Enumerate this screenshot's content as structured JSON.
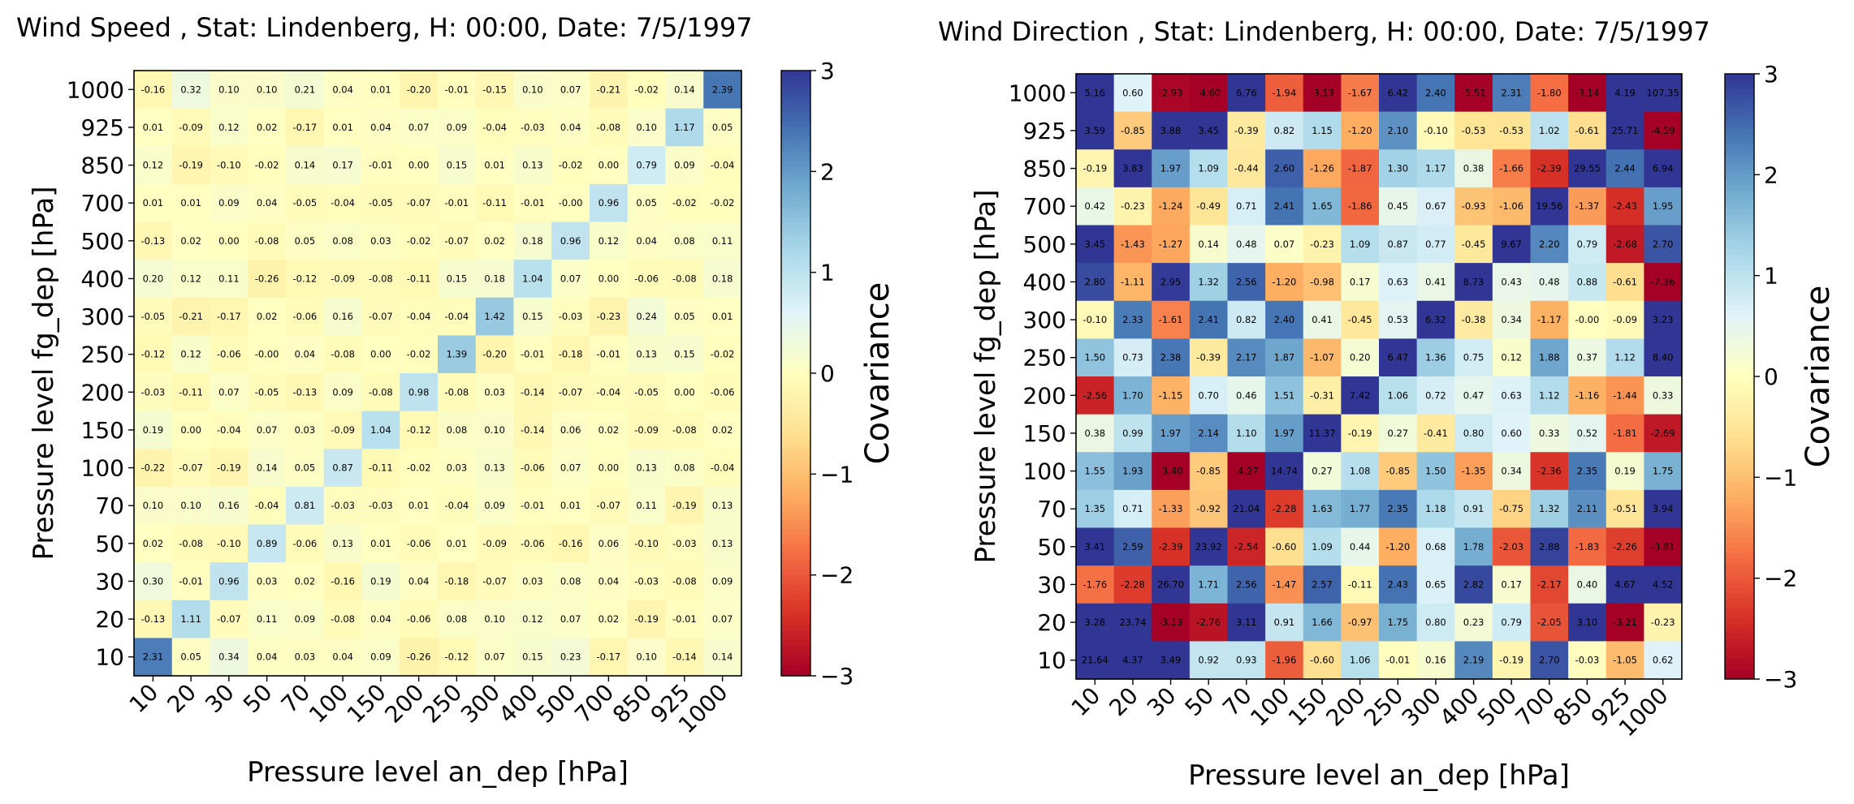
{
  "figure": {
    "charts": [
      {
        "id": "wind-speed",
        "title": "Wind Speed , Stat: Lindenberg, H: 00:00, Date: 7/5/1997",
        "xlabel": "Pressure level an_dep [hPa]",
        "ylabel": "Pressure level fg_dep [hPa]",
        "cbar_label": "Covariance"
      },
      {
        "id": "wind-direction",
        "title": "Wind Direction , Stat: Lindenberg, H: 00:00, Date: 7/5/1997",
        "xlabel": "Pressure level an_dep [hPa]",
        "ylabel": "Pressure level fg_dep [hPa]",
        "cbar_label": "Covariance"
      }
    ]
  },
  "chart_data": [
    {
      "type": "heatmap",
      "title": "Wind Speed , Stat: Lindenberg, H: 00:00, Date: 7/5/1997",
      "xlabel": "Pressure level an_dep [hPa]",
      "ylabel": "Pressure level fg_dep [hPa]",
      "x_categories": [
        "10",
        "20",
        "30",
        "50",
        "70",
        "100",
        "150",
        "200",
        "250",
        "300",
        "400",
        "500",
        "700",
        "850",
        "925",
        "1000"
      ],
      "y_categories": [
        "1000",
        "925",
        "850",
        "700",
        "500",
        "400",
        "300",
        "250",
        "200",
        "150",
        "100",
        "70",
        "50",
        "30",
        "20",
        "10"
      ],
      "values": [
        [
          "-0.16",
          "0.32",
          "0.10",
          "0.10",
          "0.21",
          "0.04",
          "0.01",
          "-0.20",
          "-0.01",
          "-0.15",
          "0.10",
          "0.07",
          "-0.21",
          "-0.02",
          "0.14",
          "2.39"
        ],
        [
          "0.01",
          "-0.09",
          "0.12",
          "0.02",
          "-0.17",
          "0.01",
          "0.04",
          "0.07",
          "0.09",
          "-0.04",
          "-0.03",
          "0.04",
          "-0.08",
          "0.10",
          "1.17",
          "0.05"
        ],
        [
          "0.12",
          "-0.19",
          "-0.10",
          "-0.02",
          "0.14",
          "0.17",
          "-0.01",
          "0.00",
          "0.15",
          "0.01",
          "0.13",
          "-0.02",
          "0.00",
          "0.79",
          "0.09",
          "-0.04"
        ],
        [
          "0.01",
          "0.01",
          "0.09",
          "0.04",
          "-0.05",
          "-0.04",
          "-0.05",
          "-0.07",
          "-0.01",
          "-0.11",
          "-0.01",
          "-0.00",
          "0.96",
          "0.05",
          "-0.02",
          "-0.02"
        ],
        [
          "-0.13",
          "0.02",
          "0.00",
          "-0.08",
          "0.05",
          "0.08",
          "0.03",
          "-0.02",
          "-0.07",
          "0.02",
          "0.18",
          "0.96",
          "0.12",
          "0.04",
          "0.08",
          "0.11"
        ],
        [
          "0.20",
          "0.12",
          "0.11",
          "-0.26",
          "-0.12",
          "-0.09",
          "-0.08",
          "-0.11",
          "0.15",
          "0.18",
          "1.04",
          "0.07",
          "0.00",
          "-0.06",
          "-0.08",
          "0.18"
        ],
        [
          "-0.05",
          "-0.21",
          "-0.17",
          "0.02",
          "-0.06",
          "0.16",
          "-0.07",
          "-0.04",
          "-0.04",
          "1.42",
          "0.15",
          "-0.03",
          "-0.23",
          "0.24",
          "0.05",
          "0.01"
        ],
        [
          "-0.12",
          "0.12",
          "-0.06",
          "-0.00",
          "0.04",
          "-0.08",
          "0.00",
          "-0.02",
          "1.39",
          "-0.20",
          "-0.01",
          "-0.18",
          "-0.01",
          "0.13",
          "0.15",
          "-0.02"
        ],
        [
          "-0.03",
          "-0.11",
          "0.07",
          "-0.05",
          "-0.13",
          "0.09",
          "-0.08",
          "0.98",
          "-0.08",
          "0.03",
          "-0.14",
          "-0.07",
          "-0.04",
          "-0.05",
          "0.00",
          "-0.06"
        ],
        [
          "0.19",
          "0.00",
          "-0.04",
          "0.07",
          "0.03",
          "-0.09",
          "1.04",
          "-0.12",
          "0.08",
          "0.10",
          "-0.14",
          "0.06",
          "0.02",
          "-0.09",
          "-0.08",
          "0.02"
        ],
        [
          "-0.22",
          "-0.07",
          "-0.19",
          "0.14",
          "0.05",
          "0.87",
          "-0.11",
          "-0.02",
          "0.03",
          "0.13",
          "-0.06",
          "0.07",
          "0.00",
          "0.13",
          "0.08",
          "-0.04"
        ],
        [
          "0.10",
          "0.10",
          "0.16",
          "-0.04",
          "0.81",
          "-0.03",
          "-0.03",
          "0.01",
          "-0.04",
          "0.09",
          "-0.01",
          "0.01",
          "-0.07",
          "0.11",
          "-0.19",
          "0.13"
        ],
        [
          "0.02",
          "-0.08",
          "-0.10",
          "0.89",
          "-0.06",
          "0.13",
          "0.01",
          "-0.06",
          "0.01",
          "-0.09",
          "-0.06",
          "-0.16",
          "0.06",
          "-0.10",
          "-0.03",
          "0.13"
        ],
        [
          "0.30",
          "-0.01",
          "0.96",
          "0.03",
          "0.02",
          "-0.16",
          "0.19",
          "0.04",
          "-0.18",
          "-0.07",
          "0.03",
          "0.08",
          "0.04",
          "-0.03",
          "-0.08",
          "0.09"
        ],
        [
          "-0.13",
          "1.11",
          "-0.07",
          "0.11",
          "0.09",
          "-0.08",
          "0.04",
          "-0.06",
          "0.08",
          "0.10",
          "0.12",
          "0.07",
          "0.02",
          "-0.19",
          "-0.01",
          "0.07"
        ],
        [
          "2.31",
          "0.05",
          "0.34",
          "0.04",
          "0.03",
          "0.04",
          "0.09",
          "-0.26",
          "-0.12",
          "0.07",
          "0.15",
          "0.23",
          "-0.17",
          "0.10",
          "-0.14",
          "0.14"
        ]
      ],
      "colorbar": {
        "label": "Covariance",
        "range": [
          -3,
          3
        ],
        "ticks": [
          "3",
          "2",
          "1",
          "0",
          "−1",
          "−2",
          "−3"
        ],
        "colormap": "RdYlBu"
      }
    },
    {
      "type": "heatmap",
      "title": "Wind Direction , Stat: Lindenberg, H: 00:00, Date: 7/5/1997",
      "xlabel": "Pressure level an_dep [hPa]",
      "ylabel": "Pressure level fg_dep [hPa]",
      "x_categories": [
        "10",
        "20",
        "30",
        "50",
        "70",
        "100",
        "150",
        "200",
        "250",
        "300",
        "400",
        "500",
        "700",
        "850",
        "925",
        "1000"
      ],
      "y_categories": [
        "1000",
        "925",
        "850",
        "700",
        "500",
        "400",
        "300",
        "250",
        "200",
        "150",
        "100",
        "70",
        "50",
        "30",
        "20",
        "10"
      ],
      "values": [
        [
          "5.16",
          "0.60",
          "-2.93",
          "-4.60",
          "6.76",
          "-1.94",
          "-3.13",
          "-1.67",
          "6.42",
          "2.40",
          "-5.51",
          "2.31",
          "-1.80",
          "-3.14",
          "4.19",
          "107.35"
        ],
        [
          "3.59",
          "-0.85",
          "3.88",
          "3.45",
          "-0.39",
          "0.82",
          "1.15",
          "-1.20",
          "2.10",
          "-0.10",
          "-0.53",
          "-0.53",
          "1.02",
          "-0.61",
          "25.71",
          "-4.59"
        ],
        [
          "-0.19",
          "3.83",
          "1.97",
          "1.09",
          "-0.44",
          "2.60",
          "-1.26",
          "-1.87",
          "1.30",
          "1.17",
          "0.38",
          "-1.66",
          "-2.39",
          "29.55",
          "2.44",
          "6.94"
        ],
        [
          "0.42",
          "-0.23",
          "-1.24",
          "-0.49",
          "0.71",
          "2.41",
          "1.65",
          "-1.86",
          "0.45",
          "0.67",
          "-0.93",
          "-1.06",
          "19.56",
          "-1.37",
          "-2.43",
          "1.95"
        ],
        [
          "3.45",
          "-1.43",
          "-1.27",
          "0.14",
          "0.48",
          "0.07",
          "-0.23",
          "1.09",
          "0.87",
          "0.77",
          "-0.45",
          "9.67",
          "2.20",
          "0.79",
          "-2.68",
          "2.70"
        ],
        [
          "2.80",
          "-1.11",
          "2.95",
          "1.32",
          "2.56",
          "-1.20",
          "-0.98",
          "0.17",
          "0.63",
          "0.41",
          "8.73",
          "0.43",
          "0.48",
          "0.88",
          "-0.61",
          "-7.36"
        ],
        [
          "-0.10",
          "2.33",
          "-1.61",
          "2.41",
          "0.82",
          "2.40",
          "0.41",
          "-0.45",
          "0.53",
          "6.32",
          "-0.38",
          "0.34",
          "-1.17",
          "-0.00",
          "-0.09",
          "3.23"
        ],
        [
          "1.50",
          "0.73",
          "2.38",
          "-0.39",
          "2.17",
          "1.87",
          "-1.07",
          "0.20",
          "6.47",
          "1.36",
          "0.75",
          "0.12",
          "1.88",
          "0.37",
          "1.12",
          "8.40"
        ],
        [
          "-2.56",
          "1.70",
          "-1.15",
          "0.70",
          "0.46",
          "1.51",
          "-0.31",
          "7.42",
          "1.06",
          "0.72",
          "0.47",
          "0.63",
          "1.12",
          "-1.16",
          "-1.44",
          "0.33"
        ],
        [
          "0.38",
          "0.99",
          "1.97",
          "2.14",
          "1.10",
          "1.97",
          "11.37",
          "-0.19",
          "0.27",
          "-0.41",
          "0.80",
          "0.60",
          "0.33",
          "0.52",
          "-1.81",
          "-2.69"
        ],
        [
          "1.55",
          "1.93",
          "-3.40",
          "-0.85",
          "-4.27",
          "14.74",
          "0.27",
          "1.08",
          "-0.85",
          "1.50",
          "-1.35",
          "0.34",
          "-2.36",
          "2.35",
          "0.19",
          "1.75"
        ],
        [
          "1.35",
          "0.71",
          "-1.33",
          "-0.92",
          "21.04",
          "-2.28",
          "1.63",
          "1.77",
          "2.35",
          "1.18",
          "0.91",
          "-0.75",
          "1.32",
          "2.11",
          "-0.51",
          "3.94"
        ],
        [
          "3.41",
          "2.59",
          "-2.39",
          "23.92",
          "-2.54",
          "-0.60",
          "1.09",
          "0.44",
          "-1.20",
          "0.68",
          "1.78",
          "-2.03",
          "2.88",
          "-1.83",
          "-2.26",
          "-3.81"
        ],
        [
          "-1.76",
          "-2.28",
          "26.70",
          "1.71",
          "2.56",
          "-1.47",
          "2.57",
          "-0.11",
          "2.43",
          "0.65",
          "2.82",
          "0.17",
          "-2.17",
          "0.40",
          "4.67",
          "4.52"
        ],
        [
          "3.28",
          "23.74",
          "-3.13",
          "-2.76",
          "3.11",
          "0.91",
          "1.66",
          "-0.97",
          "1.75",
          "0.80",
          "0.23",
          "0.79",
          "-2.05",
          "3.10",
          "-3.21",
          "-0.23"
        ],
        [
          "21.64",
          "4.37",
          "3.49",
          "0.92",
          "0.93",
          "-1.96",
          "-0.60",
          "1.06",
          "-0.01",
          "0.16",
          "2.19",
          "-0.19",
          "2.70",
          "-0.03",
          "-1.05",
          "0.62"
        ]
      ],
      "colorbar": {
        "label": "Covariance",
        "range": [
          -3,
          3
        ],
        "ticks": [
          "3",
          "2",
          "1",
          "0",
          "−1",
          "−2",
          "−3"
        ],
        "colormap": "RdYlBu"
      }
    }
  ]
}
